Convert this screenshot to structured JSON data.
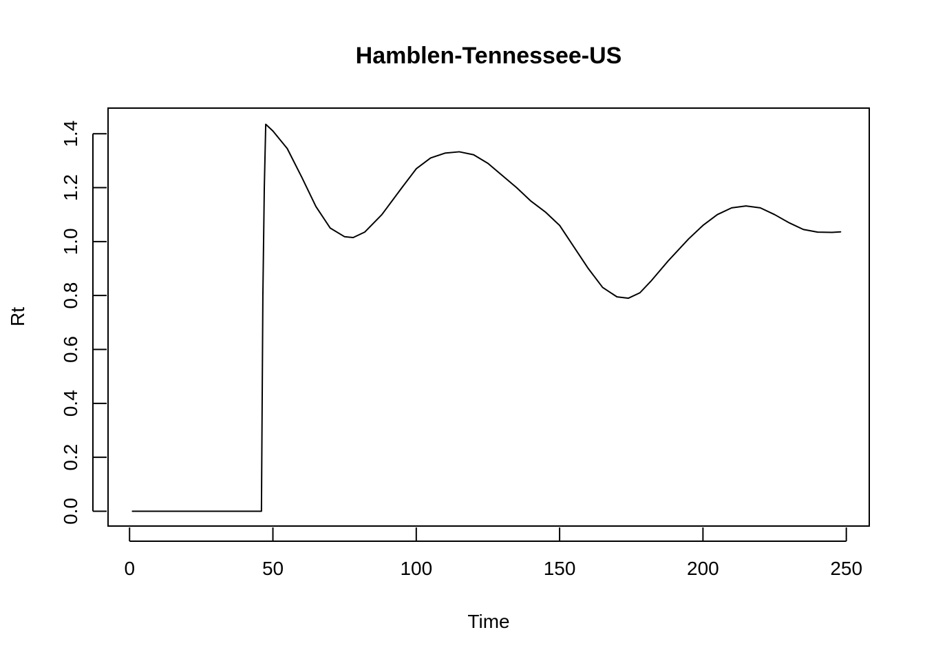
{
  "chart_data": {
    "type": "line",
    "title": "Hamblen-Tennessee-US",
    "xlabel": "Time",
    "ylabel": "Rt",
    "xlim": [
      -7.5,
      258
    ],
    "ylim": [
      -0.055,
      1.495
    ],
    "x_ticks": [
      0,
      50,
      100,
      150,
      200,
      250
    ],
    "x_tick_labels": [
      "0",
      "50",
      "100",
      "150",
      "200",
      "250"
    ],
    "y_ticks": [
      0.0,
      0.2,
      0.4,
      0.6,
      0.8,
      1.0,
      1.2,
      1.4
    ],
    "y_tick_labels": [
      "0.0",
      "0.2",
      "0.4",
      "0.6",
      "0.8",
      "1.0",
      "1.2",
      "1.4"
    ],
    "grid": false,
    "series": [
      {
        "color": "#000000",
        "x": [
          1,
          46,
          46.5,
          47,
          47.5,
          50,
          55,
          60,
          65,
          70,
          75,
          78,
          82,
          88,
          95,
          100,
          105,
          110,
          115,
          120,
          125,
          130,
          135,
          140,
          145,
          150,
          155,
          160,
          165,
          170,
          174,
          178,
          182,
          188,
          195,
          200,
          205,
          210,
          215,
          220,
          225,
          230,
          235,
          240,
          245,
          248
        ],
        "y": [
          0.0,
          0.0,
          0.8,
          1.2,
          1.435,
          1.41,
          1.345,
          1.24,
          1.13,
          1.05,
          1.018,
          1.015,
          1.035,
          1.1,
          1.2,
          1.27,
          1.31,
          1.328,
          1.333,
          1.322,
          1.29,
          1.245,
          1.2,
          1.15,
          1.11,
          1.06,
          0.98,
          0.9,
          0.83,
          0.795,
          0.79,
          0.81,
          0.855,
          0.93,
          1.01,
          1.06,
          1.1,
          1.125,
          1.132,
          1.125,
          1.1,
          1.07,
          1.045,
          1.035,
          1.034,
          1.036
        ]
      }
    ]
  }
}
